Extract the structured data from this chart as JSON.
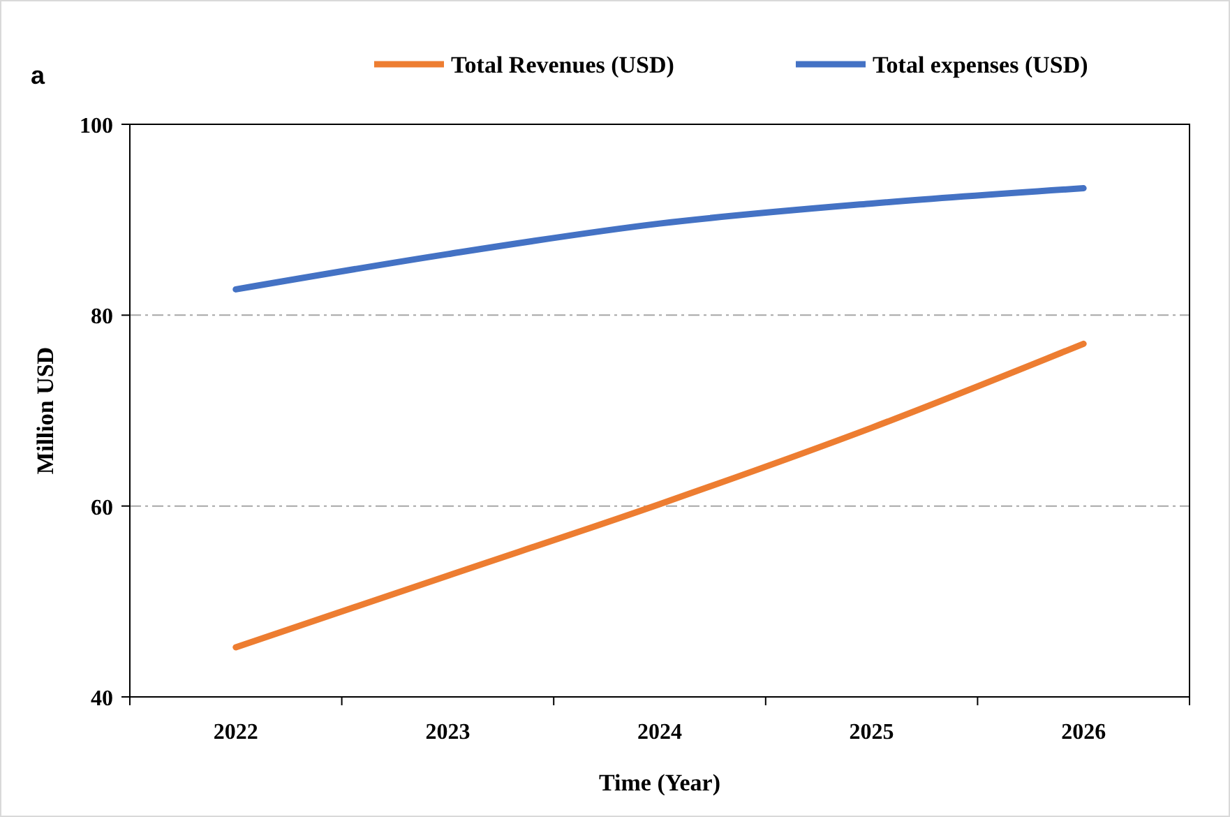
{
  "chart_data": {
    "type": "line",
    "title": "a",
    "xlabel": "Time (Year)",
    "ylabel": "Million USD",
    "categories": [
      "2022",
      "2023",
      "2024",
      "2025",
      "2026"
    ],
    "series": [
      {
        "name": "Total Revenues (USD)",
        "color": "#ed7d31",
        "values": [
          45.2,
          52.7,
          60.2,
          68.2,
          77.0
        ]
      },
      {
        "name": "Total expenses (USD)",
        "color": "#4472c4",
        "values": [
          82.7,
          86.4,
          89.6,
          91.7,
          93.3
        ]
      }
    ],
    "ylim": [
      40,
      100
    ],
    "yticks": [
      40,
      60,
      80,
      100
    ],
    "grid": "y",
    "legend": "top right",
    "line_style": "solid"
  }
}
